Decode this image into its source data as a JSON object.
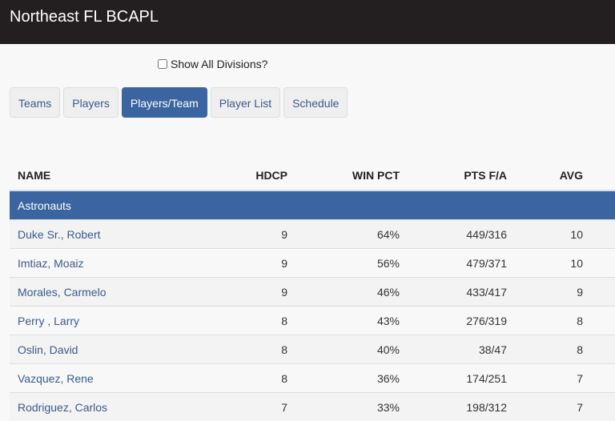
{
  "header": {
    "title": "Northeast FL BCAPL"
  },
  "filter": {
    "show_all_label": "Show All Divisions?",
    "checked": false
  },
  "tabs": [
    {
      "label": "Teams"
    },
    {
      "label": "Players"
    },
    {
      "label": "Players/Team",
      "active": true
    },
    {
      "label": "Player List"
    },
    {
      "label": "Schedule"
    }
  ],
  "table": {
    "columns": [
      "NAME",
      "HDCP",
      "WIN PCT",
      "PTS F/A",
      "AVG"
    ],
    "team": "Astronauts",
    "rows": [
      [
        "Duke Sr., Robert",
        "9",
        "64%",
        "449/316",
        "10"
      ],
      [
        "Imtiaz, Moaiz",
        "9",
        "56%",
        "479/371",
        "10"
      ],
      [
        "Morales, Carmelo",
        "9",
        "46%",
        "433/417",
        "9"
      ],
      [
        "Perry , Larry",
        "8",
        "43%",
        "276/319",
        "8"
      ],
      [
        "Oslin, David",
        "8",
        "40%",
        "38/47",
        "8"
      ],
      [
        "Vazquez, Rene",
        "8",
        "36%",
        "174/251",
        "7"
      ],
      [
        "Rodriguez, Carlos",
        "7",
        "33%",
        "198/312",
        "7"
      ]
    ]
  }
}
